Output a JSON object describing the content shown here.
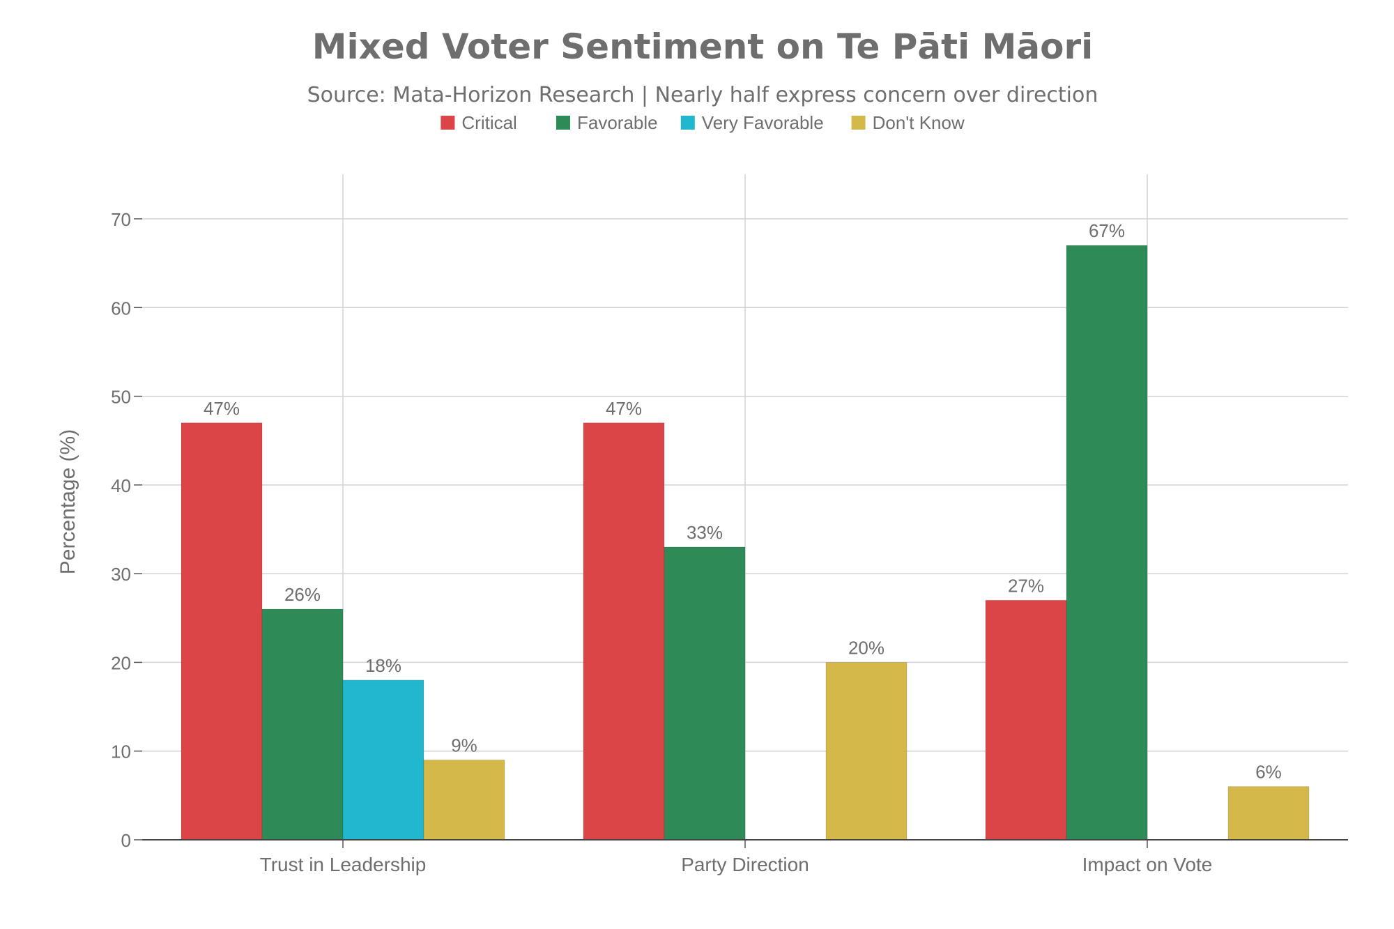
{
  "chart_data": {
    "type": "bar",
    "title": "Mixed Voter Sentiment on Te Pāti Māori",
    "subtitle": "Source: Mata-Horizon Research | Nearly half express concern over direction",
    "xlabel": "",
    "ylabel": "Percentage (%)",
    "ylim": [
      0,
      75
    ],
    "yticks": [
      0,
      10,
      20,
      30,
      40,
      50,
      60,
      70
    ],
    "grid": true,
    "legend_position": "top-center",
    "categories": [
      "Trust in Leadership",
      "Party Direction",
      "Impact on Vote"
    ],
    "series": [
      {
        "name": "Critical",
        "color": "#db4548",
        "values": [
          47,
          47,
          27
        ]
      },
      {
        "name": "Favorable",
        "color": "#2e8b57",
        "values": [
          26,
          33,
          67
        ]
      },
      {
        "name": "Very Favorable",
        "color": "#21b8cf",
        "values": [
          18,
          null,
          null
        ]
      },
      {
        "name": "Don't Know",
        "color": "#d4b84a",
        "values": [
          9,
          20,
          6
        ]
      }
    ],
    "data_label_suffix": "%"
  }
}
